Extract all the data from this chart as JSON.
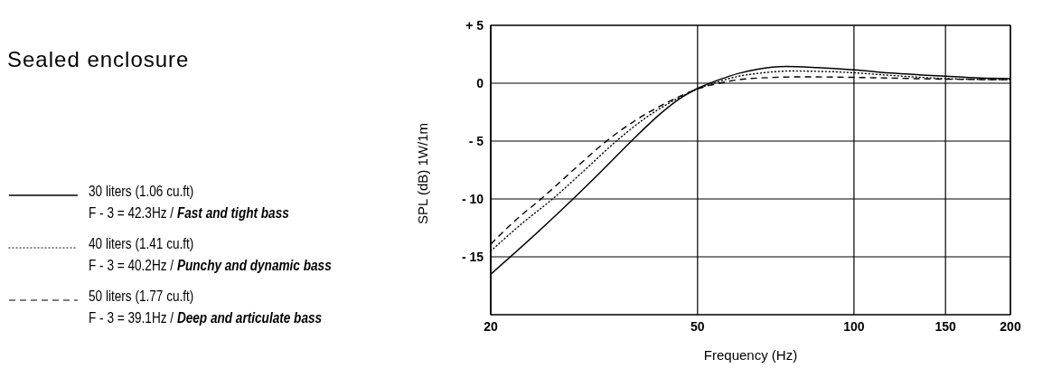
{
  "chart_data": {
    "type": "line",
    "title": "Sealed enclosure",
    "xlabel": "Frequency (Hz)",
    "ylabel": "SPL (dB) 1W/1m",
    "log": "x",
    "xlim": [
      20,
      200
    ],
    "xticks": [
      20,
      50,
      100,
      150,
      200
    ],
    "ylim": [
      -20,
      5
    ],
    "yticks": [
      {
        "value": 5,
        "label": "+ 5"
      },
      0,
      {
        "value": -5,
        "label": "- 5"
      },
      {
        "value": -10,
        "label": "- 10"
      },
      {
        "value": -15,
        "label": "- 15"
      }
    ],
    "grid": true,
    "legend": "left",
    "marker": "none",
    "series": [
      {
        "name": "30 liters (1.06 cu.ft)\nF - 3 = 42.3Hz / Fast and tight bass",
        "color": "#000000",
        "line_style": "solid",
        "x": [
          20,
          25,
          28.8,
          33,
          37.3,
          42,
          46,
          50,
          55,
          60,
          65,
          74,
          85,
          100,
          120,
          150,
          175,
          200
        ],
        "values": [
          -16.5,
          -12.6,
          -10,
          -7.4,
          -5,
          -2.8,
          -1.4,
          -0.45,
          0.3,
          0.85,
          1.2,
          1.45,
          1.35,
          1.15,
          0.85,
          0.6,
          0.45,
          0.4
        ]
      },
      {
        "name": "40 liters (1.41 cu.ft)\nF - 3 = 40.2Hz / Punchy and dynamic bass",
        "color": "#000000",
        "line_style": "dotted",
        "x": [
          20,
          23,
          26.3,
          30,
          34.9,
          40,
          45,
          50,
          55,
          60,
          67,
          75,
          90,
          100,
          120,
          150,
          200
        ],
        "values": [
          -14.5,
          -12.1,
          -10,
          -7.7,
          -5,
          -2.9,
          -1.5,
          -0.5,
          0.15,
          0.6,
          0.9,
          1.05,
          1.0,
          0.9,
          0.65,
          0.4,
          0.3
        ]
      },
      {
        "name": "50 liters (1.77 cu.ft)\nF - 3 = 39.1Hz / Deep and articulate bass",
        "color": "#000000",
        "line_style": "dashed",
        "x": [
          20,
          22.5,
          25,
          29,
          33.4,
          38,
          44,
          50,
          55,
          60,
          70,
          80,
          100,
          150,
          200
        ],
        "values": [
          -13.9,
          -11.7,
          -10,
          -7.4,
          -5,
          -3.2,
          -1.6,
          -0.5,
          0,
          0.3,
          0.5,
          0.55,
          0.5,
          0.35,
          0.3
        ]
      }
    ]
  }
}
